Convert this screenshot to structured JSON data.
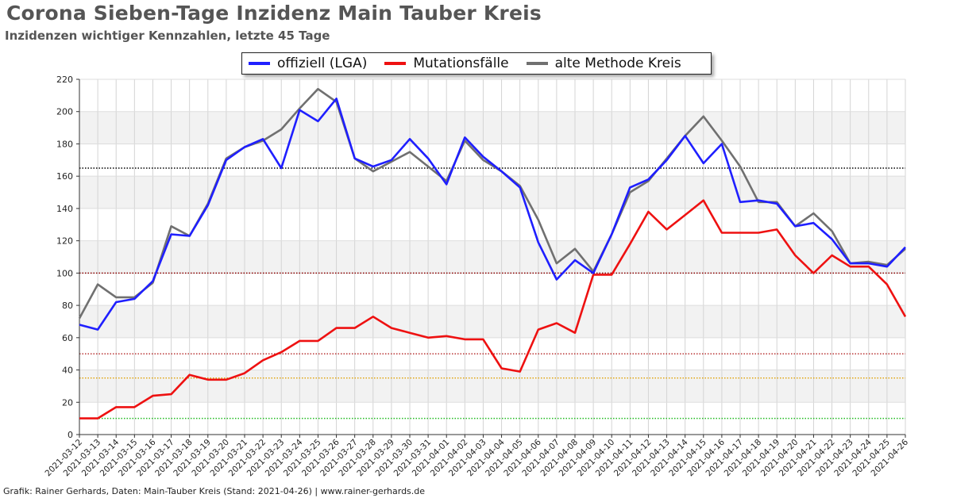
{
  "header": {
    "title": "Corona Sieben-Tage Inzidenz Main Tauber Kreis",
    "subtitle": "Inzidenzen wichtiger Kennzahlen, letzte 45 Tage"
  },
  "footer": {
    "credit": "Grafik: Rainer Gerhards, Daten: Main-Tauber Kreis (Stand: 2021-04-26) | www.rainer-gerhards.de"
  },
  "chart_data": {
    "type": "line",
    "title": "Corona Sieben-Tage Inzidenz Main Tauber Kreis",
    "subtitle": "Inzidenzen wichtiger Kennzahlen, letzte 45 Tage",
    "xlabel": "",
    "ylabel": "",
    "ylim": [
      0,
      220
    ],
    "yticks": [
      0,
      20,
      40,
      60,
      80,
      100,
      120,
      140,
      160,
      180,
      200,
      220
    ],
    "grid": true,
    "legend_position": "top-center",
    "categories": [
      "2021-03-12",
      "2021-03-13",
      "2021-03-14",
      "2021-03-15",
      "2021-03-16",
      "2021-03-17",
      "2021-03-18",
      "2021-03-19",
      "2021-03-20",
      "2021-03-21",
      "2021-03-22",
      "2021-03-23",
      "2021-03-24",
      "2021-03-25",
      "2021-03-26",
      "2021-03-27",
      "2021-03-28",
      "2021-03-29",
      "2021-03-30",
      "2021-03-31",
      "2021-04-01",
      "2021-04-02",
      "2021-04-03",
      "2021-04-04",
      "2021-04-05",
      "2021-04-06",
      "2021-04-07",
      "2021-04-08",
      "2021-04-09",
      "2021-04-10",
      "2021-04-11",
      "2021-04-12",
      "2021-04-13",
      "2021-04-14",
      "2021-04-15",
      "2021-04-16",
      "2021-04-17",
      "2021-04-18",
      "2021-04-19",
      "2021-04-20",
      "2021-04-21",
      "2021-04-22",
      "2021-04-23",
      "2021-04-24",
      "2021-04-25",
      "2021-04-26"
    ],
    "series": [
      {
        "name": "offiziell (LGA)",
        "color": "#1f1fff",
        "values": [
          68,
          65,
          82,
          84,
          95,
          124,
          123,
          142,
          170,
          178,
          183,
          165,
          201,
          194,
          208,
          171,
          166,
          170,
          183,
          171,
          155,
          184,
          172,
          163,
          153,
          119,
          96,
          108,
          100,
          124,
          153,
          158,
          170,
          185,
          168,
          180,
          144,
          145,
          143,
          129,
          131,
          121,
          106,
          106,
          104,
          116
        ]
      },
      {
        "name": "Mutationsfälle",
        "color": "#ee1111",
        "values": [
          10,
          10,
          17,
          17,
          24,
          25,
          37,
          34,
          34,
          38,
          46,
          51,
          58,
          58,
          66,
          66,
          73,
          66,
          63,
          60,
          61,
          59,
          59,
          41,
          39,
          65,
          69,
          63,
          99,
          99,
          118,
          138,
          127,
          136,
          145,
          125,
          125,
          125,
          127,
          111,
          100,
          111,
          104,
          104,
          93,
          73
        ]
      },
      {
        "name": "alte Methode Kreis",
        "color": "#707070",
        "values": [
          72,
          93,
          85,
          85,
          94,
          129,
          123,
          143,
          171,
          178,
          182,
          189,
          202,
          214,
          206,
          171,
          163,
          169,
          175,
          166,
          157,
          182,
          170,
          163,
          154,
          133,
          106,
          115,
          101,
          124,
          150,
          157,
          171,
          185,
          197,
          182,
          166,
          144,
          144,
          129,
          137,
          126,
          106,
          107,
          105,
          115
        ]
      }
    ],
    "reference_lines": [
      {
        "value": 165,
        "color": "#000000"
      },
      {
        "value": 100,
        "color": "#8b0000"
      },
      {
        "value": 50,
        "color": "#b22222"
      },
      {
        "value": 35,
        "color": "#e0a000"
      },
      {
        "value": 10,
        "color": "#22bb22"
      }
    ]
  }
}
